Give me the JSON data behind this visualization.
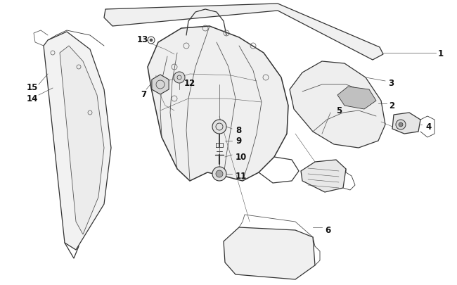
{
  "bg_color": "#ffffff",
  "line_color": "#555555",
  "dark_line": "#333333",
  "label_color": "#111111",
  "label_fontsize": 8.5,
  "label_fontweight": "bold",
  "figsize": [
    6.5,
    4.06
  ],
  "dpi": 100
}
